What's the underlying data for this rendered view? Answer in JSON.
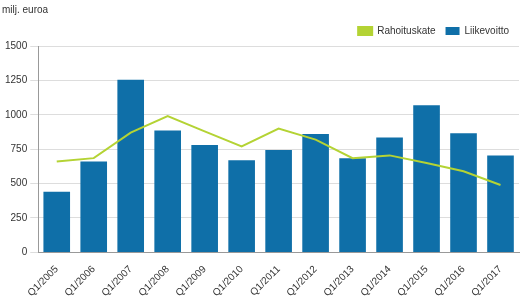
{
  "chart_data": {
    "type": "bar",
    "y_label": "milj. euroa",
    "categories": [
      "Q1/2005",
      "Q1/2006",
      "Q1/2007",
      "Q1/2008",
      "Q1/2009",
      "Q1/2010",
      "Q1/2011",
      "Q1/2012",
      "Q1/2013",
      "Q1/2014",
      "Q1/2015",
      "Q1/2016",
      "Q1/2017"
    ],
    "series": [
      {
        "name": "Liikevoitto",
        "type": "bar",
        "color": "#0f6fa8",
        "values": [
          440,
          660,
          1255,
          885,
          780,
          670,
          745,
          860,
          685,
          835,
          1070,
          865,
          705
        ]
      },
      {
        "name": "Rahoituskate",
        "type": "line",
        "color": "#b4d334",
        "values": [
          660,
          685,
          870,
          990,
          880,
          770,
          900,
          820,
          685,
          705,
          650,
          590,
          490
        ]
      }
    ],
    "ylim": [
      0,
      1500
    ],
    "yticks": [
      0,
      250,
      500,
      750,
      1000,
      1250,
      1500
    ],
    "grid": true,
    "legend": "upper right"
  }
}
